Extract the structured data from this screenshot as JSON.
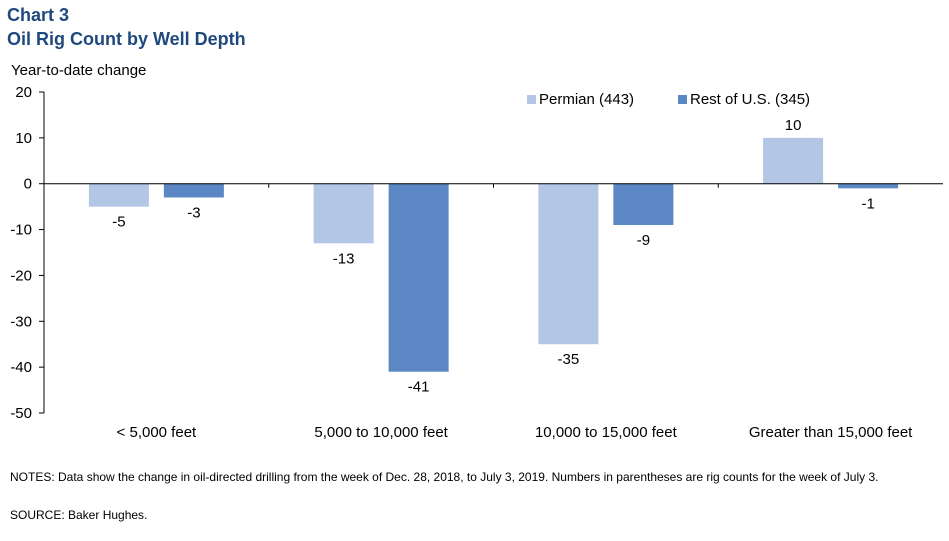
{
  "header": {
    "chart_no": "Chart 3",
    "title": "Oil Rig Count by Well Depth"
  },
  "chart_data": {
    "type": "bar",
    "title": "Oil Rig Count by Well Depth",
    "ylabel": "Year-to-date  change",
    "xlabel": "",
    "ylim": [
      -50,
      20
    ],
    "yticks": [
      20,
      10,
      0,
      -10,
      -20,
      -30,
      -40,
      -50
    ],
    "categories": [
      "< 5,000 feet",
      "5,000 to 10,000 feet",
      "10,000 to 15,000 feet",
      "Greater than 15,000 feet"
    ],
    "series": [
      {
        "name": "Permian (443)",
        "values": [
          -5,
          -13,
          -35,
          10
        ],
        "color": "#b4c6e6"
      },
      {
        "name": "Rest of U.S. (345)",
        "values": [
          -3,
          -41,
          -9,
          -1
        ],
        "color": "#5b87c5"
      }
    ],
    "legend_position": "top-right",
    "grid": false
  },
  "footer": {
    "notes": "NOTES: Data show the change in oil-directed drilling from the week of Dec. 28, 2018, to July 3, 2019. Numbers in parentheses are rig counts for the week of July 3.",
    "source": "SOURCE: Baker Hughes."
  }
}
